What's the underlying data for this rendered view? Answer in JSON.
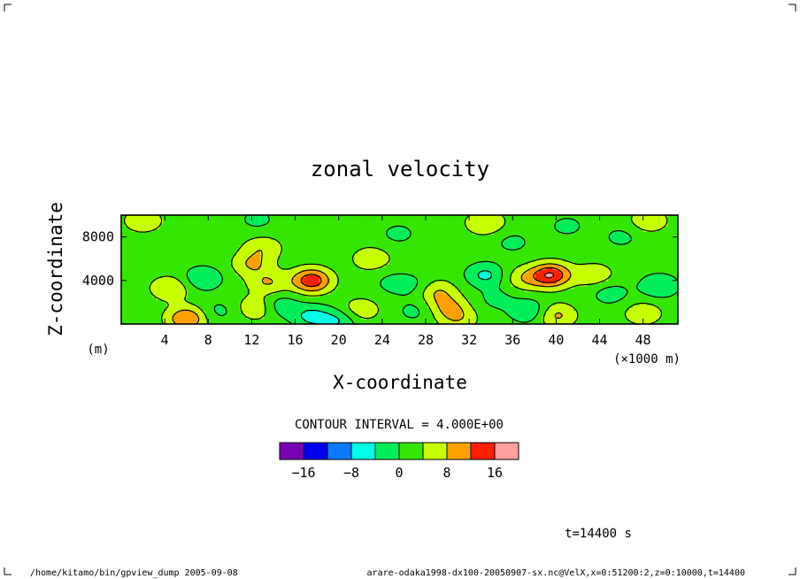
{
  "chart_data": {
    "type": "heatmap",
    "title": "zonal velocity",
    "xlabel": "X-coordinate",
    "ylabel": "Z-coordinate",
    "x_unit": "(×1000 m)",
    "y_unit": "(m)",
    "xlim": [
      0,
      51.2
    ],
    "ylim": [
      0,
      10000
    ],
    "x_ticks": [
      4,
      8,
      12,
      16,
      20,
      24,
      28,
      32,
      36,
      40,
      44,
      48
    ],
    "y_ticks": [
      4000,
      8000
    ],
    "contour_interval_text": "CONTOUR INTERVAL = 4.000E+00",
    "colorbar": {
      "levels": [
        -20,
        -16,
        -12,
        -8,
        -4,
        0,
        4,
        8,
        12,
        16,
        20
      ],
      "colors": [
        "#7a00b4",
        "#0000f0",
        "#0a78ff",
        "#00ffe6",
        "#00ee5a",
        "#34e600",
        "#c8ff00",
        "#ffa000",
        "#ff1e00",
        "#ffa0a0"
      ],
      "tick_labels": [
        "−16",
        "−8",
        "0",
        "8",
        "16"
      ],
      "tick_values": [
        -16,
        -8,
        0,
        8,
        16
      ]
    },
    "background_value": 2,
    "features": [
      {
        "x": 4.5,
        "z": 3300,
        "value": 6
      },
      {
        "x": 7.5,
        "z": 4200,
        "value": -6
      },
      {
        "x": 6.0,
        "z": 500,
        "value": 10
      },
      {
        "x": 9.0,
        "z": 1200,
        "value": -3
      },
      {
        "x": 13.5,
        "z": 3800,
        "value": 6
      },
      {
        "x": 12.5,
        "z": 1500,
        "value": 6
      },
      {
        "x": 14.5,
        "z": 1700,
        "value": -5
      },
      {
        "x": 17.5,
        "z": 700,
        "value": -7
      },
      {
        "x": 17.5,
        "z": 4000,
        "value": 13
      },
      {
        "x": 20.0,
        "z": 300,
        "value": -6
      },
      {
        "x": 22.0,
        "z": 1300,
        "value": 5
      },
      {
        "x": 25.0,
        "z": 3800,
        "value": -3
      },
      {
        "x": 27.0,
        "z": 3500,
        "value": -3
      },
      {
        "x": 29.0,
        "z": 3000,
        "value": 6
      },
      {
        "x": 30.0,
        "z": 1600,
        "value": 6
      },
      {
        "x": 31.0,
        "z": 500,
        "value": 5
      },
      {
        "x": 33.5,
        "z": 4500,
        "value": -7
      },
      {
        "x": 34.5,
        "z": 2300,
        "value": -3
      },
      {
        "x": 37.5,
        "z": 1200,
        "value": -6
      },
      {
        "x": 39.5,
        "z": 4500,
        "value": 14
      },
      {
        "x": 37.0,
        "z": 4200,
        "value": 5
      },
      {
        "x": 40.0,
        "z": 800,
        "value": 7
      },
      {
        "x": 43.5,
        "z": 4500,
        "value": 5
      },
      {
        "x": 45.0,
        "z": 2800,
        "value": -4
      },
      {
        "x": 49.5,
        "z": 3500,
        "value": -6
      },
      {
        "x": 48.0,
        "z": 1000,
        "value": 5
      },
      {
        "x": 36.0,
        "z": 7500,
        "value": -3
      },
      {
        "x": 33.5,
        "z": 9300,
        "value": 6
      },
      {
        "x": 25.5,
        "z": 8300,
        "value": -3
      },
      {
        "x": 12.5,
        "z": 9600,
        "value": -3
      },
      {
        "x": 13.0,
        "z": 7000,
        "value": 5
      },
      {
        "x": 2.0,
        "z": 9500,
        "value": 5
      },
      {
        "x": 12.0,
        "z": 5500,
        "value": 6
      },
      {
        "x": 48.5,
        "z": 9500,
        "value": 5
      },
      {
        "x": 46.0,
        "z": 8000,
        "value": -3
      },
      {
        "x": 41.0,
        "z": 9000,
        "value": -3
      },
      {
        "x": 27.0,
        "z": 1200,
        "value": -3
      },
      {
        "x": 23.0,
        "z": 6000,
        "value": 5
      }
    ]
  },
  "time_label": "t=14400 s",
  "footer": {
    "left": "/home/kitamo/bin/gpview_dump  2005-09-08",
    "right": "arare-odaka1998-dx100-20050907-sx.nc@VelX,x=0:51200:2,z=0:10000,t=14400"
  }
}
